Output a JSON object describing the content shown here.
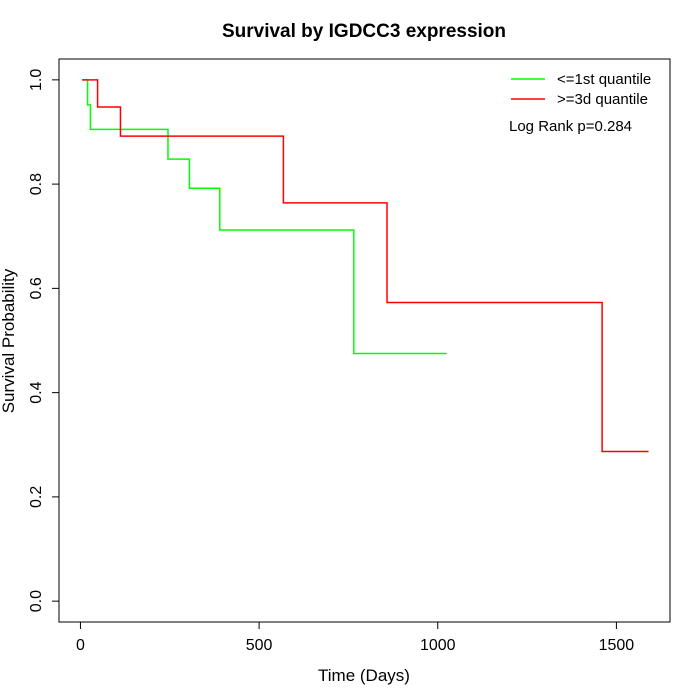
{
  "chart_data": {
    "type": "line",
    "title": "Survival by IGDCC3 expression",
    "xlabel": "Time (Days)",
    "ylabel": "Survival Probability",
    "xlim": [
      -60,
      1650
    ],
    "ylim": [
      -0.04,
      1.04
    ],
    "x_ticks": [
      0,
      500,
      1000,
      1500
    ],
    "y_ticks": [
      0.0,
      0.2,
      0.4,
      0.6,
      0.8,
      1.0
    ],
    "x_tick_labels": [
      "0",
      "500",
      "1000",
      "1500"
    ],
    "y_tick_labels": [
      "0.0",
      "0.2",
      "0.4",
      "0.6",
      "0.8",
      "1.0"
    ],
    "grid": false,
    "legend_position": "top-right",
    "annotation": "Log Rank p=0.284",
    "series": [
      {
        "name": "<=1st quantile",
        "color": "#00ff00",
        "x": [
          5,
          20,
          28,
          245,
          305,
          390,
          765,
          1025
        ],
        "y": [
          1.0,
          0.952,
          0.905,
          0.848,
          0.792,
          0.712,
          0.475,
          0.475
        ]
      },
      {
        "name": ">=3d quantile",
        "color": "#ff0000",
        "x": [
          5,
          48,
          112,
          568,
          858,
          1460,
          1590
        ],
        "y": [
          1.0,
          0.948,
          0.892,
          0.764,
          0.573,
          0.287,
          0.287
        ]
      }
    ]
  }
}
